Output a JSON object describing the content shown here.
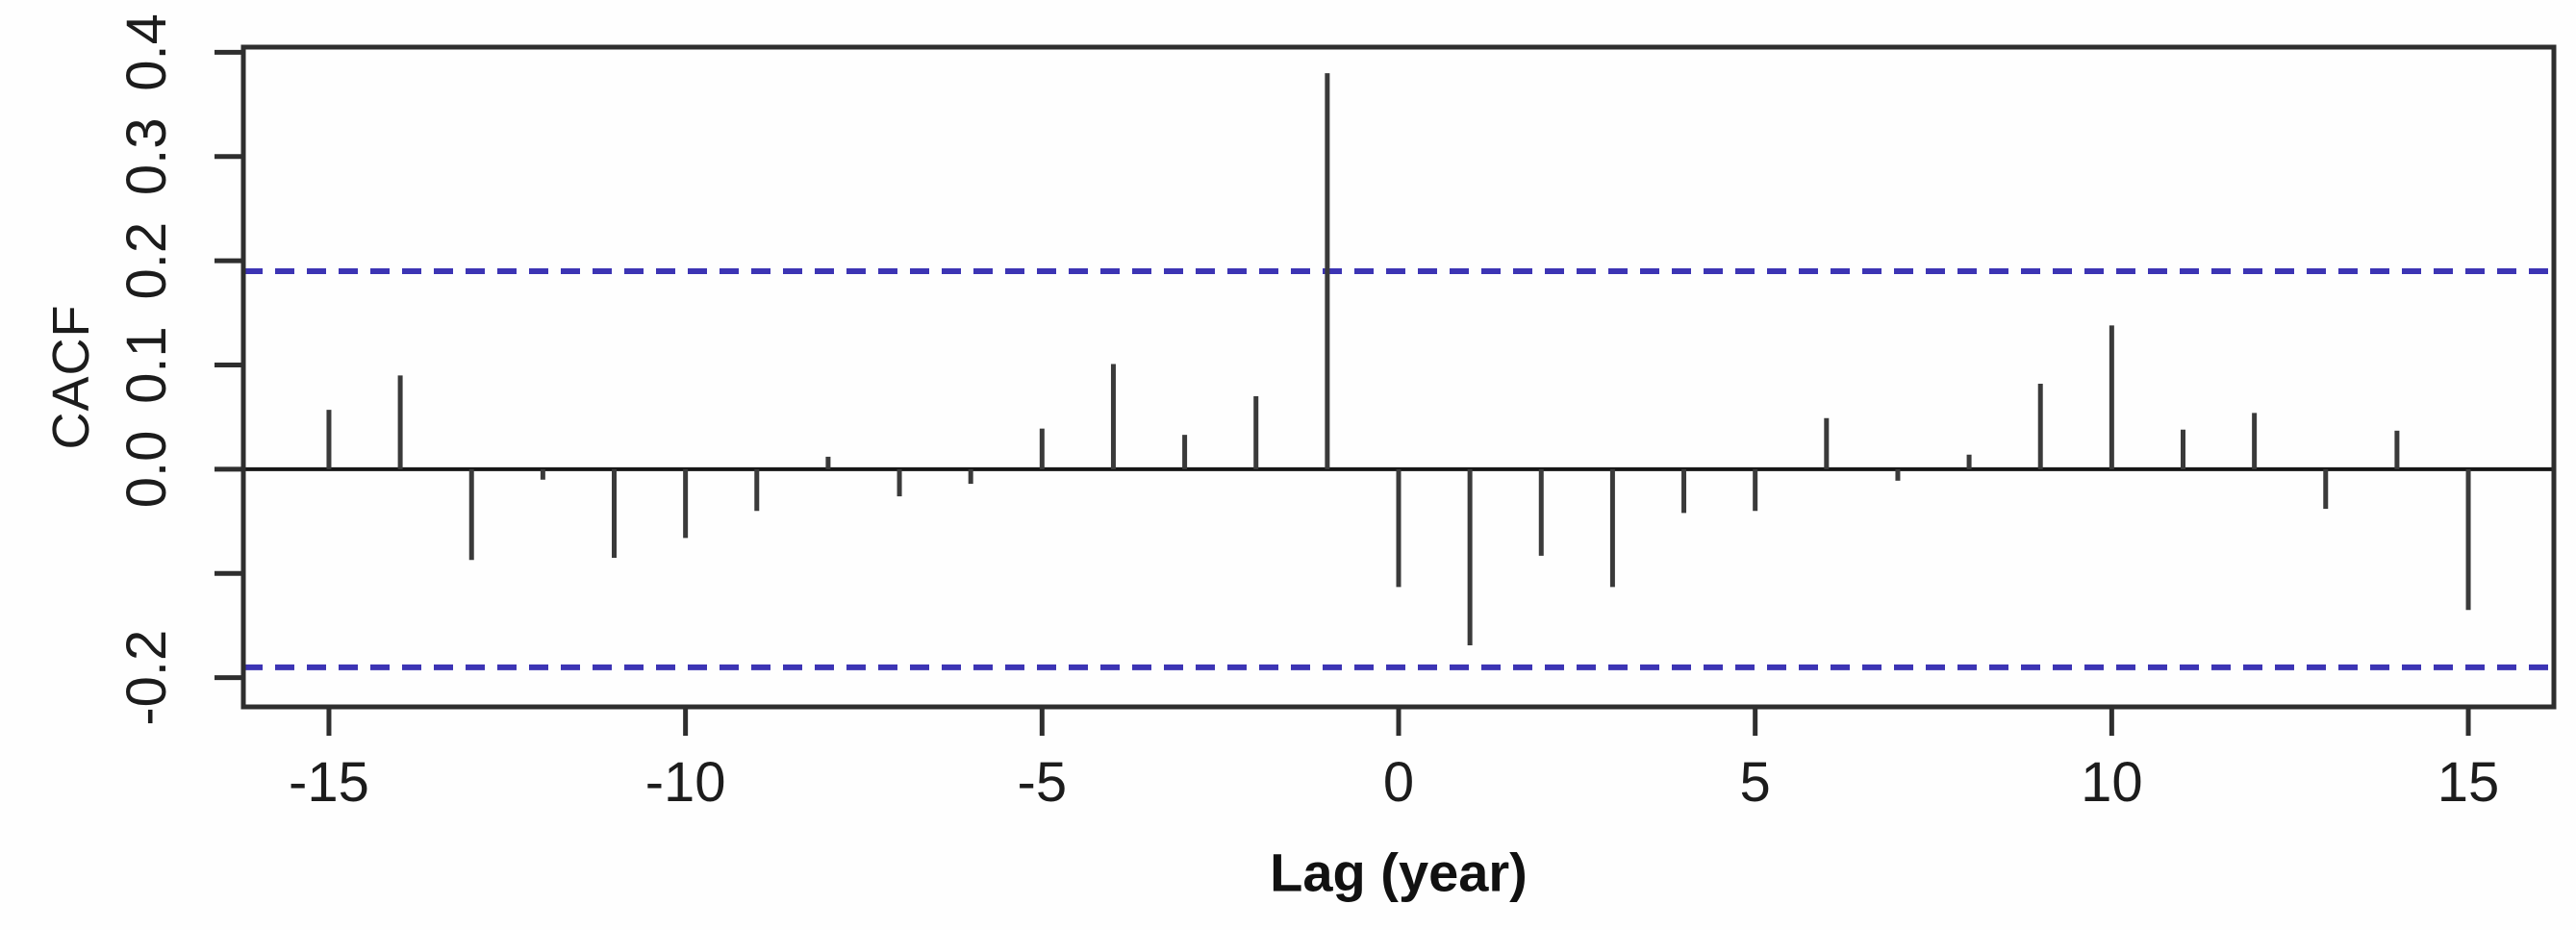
{
  "chart_data": {
    "type": "bar",
    "title": "",
    "xlabel": "Lag (year)",
    "ylabel": "CACF",
    "x": [
      -15,
      -14,
      -13,
      -12,
      -11,
      -10,
      -9,
      -8,
      -7,
      -6,
      -5,
      -4,
      -3,
      -2,
      -1,
      0,
      1,
      2,
      3,
      4,
      5,
      6,
      7,
      8,
      9,
      10,
      11,
      12,
      13,
      14,
      15
    ],
    "values": [
      0.057,
      0.09,
      -0.087,
      -0.01,
      -0.085,
      -0.066,
      -0.04,
      0.012,
      -0.026,
      -0.014,
      0.039,
      0.101,
      0.033,
      0.07,
      0.38,
      -0.113,
      -0.169,
      -0.083,
      -0.113,
      -0.042,
      -0.04,
      0.049,
      -0.011,
      0.014,
      0.082,
      0.138,
      0.038,
      0.054,
      -0.038,
      0.037,
      -0.135
    ],
    "confidence_bounds": {
      "upper": 0.19,
      "lower": -0.19,
      "line_style": "dashed",
      "color": "#3c34b4"
    },
    "xlim": [
      -16.2,
      16.2
    ],
    "ylim": [
      -0.228,
      0.405
    ],
    "x_ticks": [
      {
        "value": -15,
        "label": "-15"
      },
      {
        "value": -10,
        "label": "-10"
      },
      {
        "value": -5,
        "label": "-5"
      },
      {
        "value": 0,
        "label": "0"
      },
      {
        "value": 5,
        "label": "5"
      },
      {
        "value": 10,
        "label": "10"
      },
      {
        "value": 15,
        "label": "15"
      }
    ],
    "y_ticks": [
      {
        "value": -0.2,
        "label": "-0.2"
      },
      {
        "value": -0.1,
        "label": ""
      },
      {
        "value": 0.0,
        "label": "0.0"
      },
      {
        "value": 0.1,
        "label": "0.1"
      },
      {
        "value": 0.2,
        "label": "0.2"
      },
      {
        "value": 0.3,
        "label": "0.3"
      },
      {
        "value": 0.4,
        "label": "0.4"
      }
    ],
    "grid": false,
    "legend": null,
    "bar_color": "#3a3a3a",
    "zero_line_color": "#161616",
    "axis_color": "#2e2e2e",
    "tick_label_color": "#1c1c1c",
    "background": "#fefefe"
  }
}
